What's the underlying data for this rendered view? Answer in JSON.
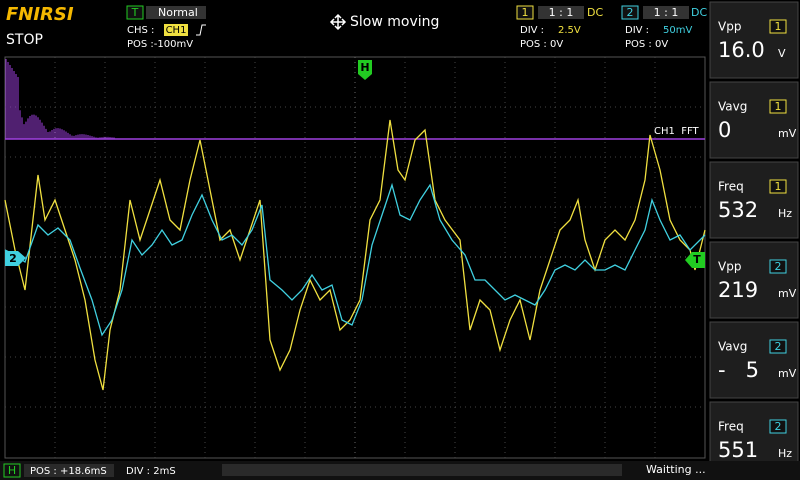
{
  "header": {
    "brand": "FNIRSI",
    "status": "STOP",
    "trigger": {
      "badge": "T",
      "mode": "Normal",
      "source_label": "CHS :",
      "source": "CH1",
      "pos": "POS :-100mV"
    },
    "mode_text": "Slow moving"
  },
  "channels": [
    {
      "number": "1",
      "probe": "1 : 1",
      "coupling": "DC",
      "div_label": "DIV :",
      "div": "2.5V",
      "pos": "POS : 0V"
    },
    {
      "number": "2",
      "probe": "1 : 1",
      "coupling": "DC",
      "div_label": "DIV :",
      "div": "50mV",
      "pos": "POS : 0V"
    }
  ],
  "plot": {
    "h_marker": "H",
    "fft_label": "CH1  FFT",
    "ch2_marker": "2",
    "trigger_marker": "T"
  },
  "measurements": [
    {
      "label": "Vpp",
      "channel": "1",
      "value": "16.0",
      "unit": "V"
    },
    {
      "label": "Vavg",
      "channel": "1",
      "value": "0",
      "unit": "mV"
    },
    {
      "label": "Freq",
      "channel": "1",
      "value": "532",
      "unit": "Hz"
    },
    {
      "label": "Vpp",
      "channel": "2",
      "value": "219",
      "unit": "mV"
    },
    {
      "label": "Vavg",
      "channel": "2",
      "value": "-   5",
      "unit": "mV"
    },
    {
      "label": "Freq",
      "channel": "2",
      "value": "551",
      "unit": "Hz"
    }
  ],
  "footer": {
    "badge": "H",
    "pos": "POS : +18.6mS",
    "div": "DIV : 2mS",
    "status": "Waitting ..."
  }
}
